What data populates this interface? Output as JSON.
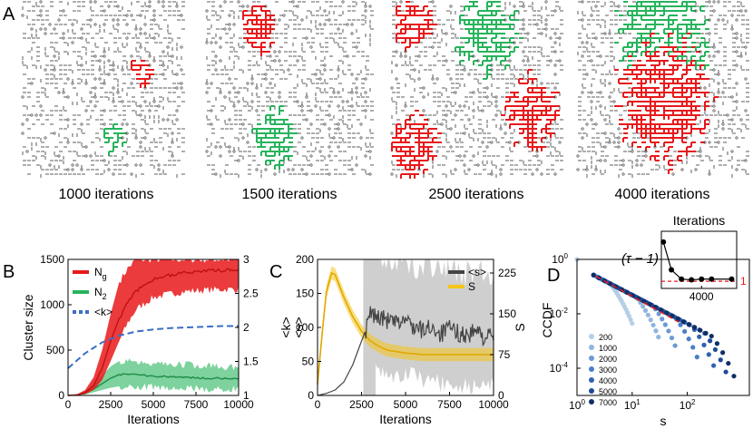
{
  "panel_letters": {
    "a": "A",
    "b": "B",
    "c": "C",
    "d": "D"
  },
  "panel_a": {
    "captions": [
      "1000 iterations",
      "1500 iterations",
      "2500 iterations",
      "4000 iterations"
    ],
    "colors": {
      "cluster_1": "#e8191b",
      "cluster_2": "#27b45c",
      "lattice": "#333333"
    }
  },
  "chart_data": [
    {
      "id": "B",
      "type": "line",
      "xlabel": "Iterations",
      "ylabel": "Cluster size",
      "y2label": "<k>",
      "xlim": [
        0,
        10000
      ],
      "ylim": [
        0,
        1500
      ],
      "y2lim": [
        1,
        3
      ],
      "xticks": [
        "0",
        "2500",
        "5000",
        "7500",
        "10000"
      ],
      "yticks": [
        "0",
        "500",
        "1000",
        "1500"
      ],
      "y2ticks": [
        "1",
        "1.5",
        "2",
        "2.5",
        "3"
      ],
      "legend": {
        "position": "top-left",
        "entries": [
          "Ng",
          "N2",
          "<k>"
        ]
      },
      "series": [
        {
          "name": "Ng",
          "color": "#e8191b",
          "axis": "left",
          "x": [
            0,
            500,
            1000,
            1500,
            2000,
            2500,
            3000,
            3500,
            4000,
            5000,
            6000,
            7000,
            8000,
            9000,
            10000
          ],
          "values": [
            0,
            5,
            30,
            110,
            300,
            600,
            850,
            1020,
            1150,
            1280,
            1330,
            1360,
            1370,
            1380,
            1380
          ],
          "lower": [
            0,
            3,
            15,
            60,
            170,
            380,
            600,
            800,
            950,
            1080,
            1120,
            1150,
            1160,
            1170,
            1170
          ],
          "upper": [
            0,
            10,
            60,
            200,
            500,
            900,
            1250,
            1400,
            1500,
            1500,
            1500,
            1500,
            1500,
            1500,
            1500
          ]
        },
        {
          "name": "N2",
          "color": "#27b45c",
          "axis": "left",
          "x": [
            0,
            500,
            1000,
            1500,
            2000,
            2500,
            3000,
            3500,
            4000,
            5000,
            6000,
            7000,
            8000,
            9000,
            10000
          ],
          "values": [
            0,
            5,
            25,
            70,
            130,
            190,
            230,
            240,
            230,
            215,
            205,
            200,
            190,
            190,
            185
          ],
          "lower": [
            0,
            3,
            10,
            35,
            60,
            85,
            100,
            105,
            100,
            90,
            80,
            75,
            70,
            70,
            70
          ],
          "upper": [
            0,
            10,
            45,
            120,
            220,
            320,
            380,
            390,
            380,
            360,
            350,
            340,
            330,
            320,
            300
          ]
        },
        {
          "name": "<k>",
          "color": "#3a6fc4",
          "axis": "right",
          "dashed": true,
          "x": [
            0,
            1000,
            2000,
            3000,
            4000,
            5000,
            6000,
            7000,
            8000,
            9000,
            10000
          ],
          "values": [
            1.4,
            1.62,
            1.78,
            1.88,
            1.94,
            1.97,
            1.99,
            2.0,
            2.01,
            2.02,
            2.02
          ]
        }
      ]
    },
    {
      "id": "C",
      "type": "line",
      "xlabel": "Iterations",
      "ylabel": "<k>\n<s>",
      "y2label": "S",
      "xlim": [
        0,
        10000
      ],
      "ylim": [
        0,
        200
      ],
      "y2lim": [
        0,
        250
      ],
      "xticks": [
        "0",
        "2500",
        "5000",
        "7500",
        "10000"
      ],
      "yticks": [
        "0",
        "50",
        "100",
        "150",
        "200"
      ],
      "y2ticks": [
        "0",
        "75",
        "150",
        "225"
      ],
      "legend": {
        "position": "top-right",
        "entries": [
          "<s>",
          "S"
        ]
      },
      "series": [
        {
          "name": "<s>",
          "color": "#444444",
          "axis": "left",
          "x": [
            0,
            500,
            1000,
            1500,
            2000,
            2500,
            2800,
            3000,
            3500,
            4000,
            4500,
            5000,
            5500,
            6000,
            6500,
            7000,
            7500,
            8000,
            8500,
            9000,
            9500,
            10000
          ],
          "values": [
            0,
            3,
            8,
            20,
            45,
            80,
            100,
            120,
            115,
            110,
            105,
            112,
            100,
            95,
            102,
            90,
            98,
            92,
            88,
            95,
            85,
            88
          ]
        },
        {
          "name": "S",
          "color": "#f5c518",
          "axis": "right",
          "x": [
            0,
            250,
            500,
            800,
            1000,
            1500,
            2000,
            2500,
            3000,
            3500,
            4000,
            5000,
            6000,
            7000,
            8000,
            9000,
            10000
          ],
          "values": [
            20,
            110,
            190,
            225,
            222,
            180,
            145,
            118,
            100,
            90,
            83,
            78,
            75,
            75,
            75,
            75,
            75
          ],
          "band": 12
        }
      ]
    },
    {
      "id": "D",
      "type": "scatter",
      "xlabel": "s",
      "ylabel": "CCDF",
      "xscale": "log",
      "yscale": "log",
      "xlim": [
        1,
        1000
      ],
      "ylim": [
        1e-05,
        1
      ],
      "xticks": [
        "10^0",
        "10^1",
        "10^2"
      ],
      "yticks": [
        "10^0",
        "10^-2",
        "10^-4"
      ],
      "legend": {
        "position": "bottom-left",
        "entries": [
          "200",
          "1000",
          "2000",
          "3000",
          "4000",
          "5000",
          "7000"
        ]
      },
      "series": [
        {
          "name": "200",
          "color": "#b5cfe8",
          "smax": 10
        },
        {
          "name": "1000",
          "color": "#8fb5e0",
          "smax": 30
        },
        {
          "name": "2000",
          "color": "#6a9ad6",
          "smax": 60
        },
        {
          "name": "3000",
          "color": "#4a7fc7",
          "smax": 150
        },
        {
          "name": "4000",
          "color": "#2f63b0",
          "smax": 300
        },
        {
          "name": "5000",
          "color": "#1d4a94",
          "smax": 500
        },
        {
          "name": "7000",
          "color": "#0f2f66",
          "smax": 700
        }
      ],
      "power_law": {
        "color": "#e8191b"
      },
      "inset": {
        "title": "Iterations",
        "ylabel": "(τ − 1)",
        "xticks": [
          "4000"
        ],
        "yticks": [
          "1"
        ],
        "x": [
          200,
          1000,
          2000,
          3000,
          4000,
          5000,
          7000
        ],
        "values": [
          1.55,
          1.16,
          1.03,
          1.02,
          1.03,
          1.03,
          1.03
        ],
        "xlim": [
          0,
          7500
        ],
        "ylim": [
          0.9,
          1.7
        ],
        "reference": 1
      }
    }
  ]
}
